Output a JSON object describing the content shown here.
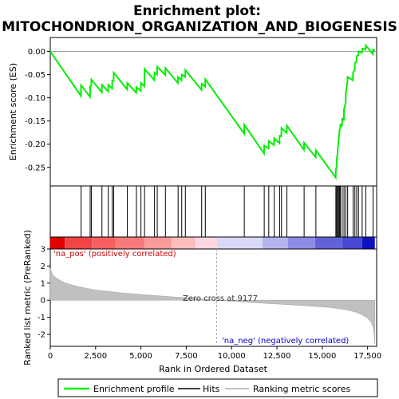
{
  "chart_data": {
    "type": "line",
    "title_line1": "Enrichment plot:",
    "title_line2": "MITOCHONDRION_ORGANIZATION_AND_BIOGENESIS",
    "xlabel": "Rank in Ordered Dataset",
    "ylabel_top": "Enrichment score (ES)",
    "ylabel_bottom": "Ranked list metric (PreRanked)",
    "x_range": [
      0,
      18000
    ],
    "x_ticks": [
      0,
      2500,
      5000,
      7500,
      10000,
      12500,
      15000,
      17500
    ],
    "x_tick_labels": [
      "0",
      "2,500",
      "5,000",
      "7,500",
      "10,000",
      "12,500",
      "15,000",
      "17,500"
    ],
    "es_range": [
      -0.29,
      0.03
    ],
    "es_ticks": [
      0.0,
      -0.05,
      -0.1,
      -0.15,
      -0.2,
      -0.25
    ],
    "es_tick_labels": [
      "0.00",
      "-0.05",
      "-0.10",
      "-0.15",
      "-0.20",
      "-0.25"
    ],
    "metric_range": [
      -2.7,
      3.0
    ],
    "metric_ticks": [
      3,
      2,
      1,
      0,
      -1,
      -2
    ],
    "metric_tick_labels": [
      "3",
      "2",
      "1",
      "0",
      "-1",
      "-2"
    ],
    "zero_cross_label": "Zero cross at 9177",
    "zero_cross_rank": 9177,
    "pos_label": "'na_pos' (positively correlated)",
    "neg_label": "'na_neg' (negatively correlated)",
    "hits": [
      1700,
      2200,
      2270,
      2850,
      3200,
      3420,
      3500,
      4250,
      4750,
      5000,
      5200,
      5750,
      5900,
      6350,
      7050,
      7250,
      7450,
      8350,
      8550,
      10700,
      11800,
      12050,
      12350,
      12650,
      12750,
      13050,
      14000,
      14650,
      15750,
      15800,
      15850,
      15900,
      15950,
      16000,
      16100,
      16200,
      16300,
      16400,
      16700,
      16800,
      16900,
      17000,
      17200,
      17400,
      17800
    ],
    "es_curve": [
      [
        0,
        0.0
      ],
      [
        1690,
        -0.096
      ],
      [
        1700,
        -0.073
      ],
      [
        2190,
        -0.098
      ],
      [
        2200,
        -0.075
      ],
      [
        2260,
        -0.074
      ],
      [
        2270,
        -0.061
      ],
      [
        2840,
        -0.088
      ],
      [
        2850,
        -0.072
      ],
      [
        3190,
        -0.086
      ],
      [
        3200,
        -0.072
      ],
      [
        3410,
        -0.08
      ],
      [
        3420,
        -0.063
      ],
      [
        3490,
        -0.063
      ],
      [
        3500,
        -0.046
      ],
      [
        4240,
        -0.082
      ],
      [
        4250,
        -0.068
      ],
      [
        4740,
        -0.089
      ],
      [
        4750,
        -0.077
      ],
      [
        4990,
        -0.085
      ],
      [
        5000,
        -0.068
      ],
      [
        5190,
        -0.075
      ],
      [
        5200,
        -0.038
      ],
      [
        5740,
        -0.062
      ],
      [
        5750,
        -0.046
      ],
      [
        5890,
        -0.05
      ],
      [
        5900,
        -0.033
      ],
      [
        6340,
        -0.051
      ],
      [
        6350,
        -0.036
      ],
      [
        7040,
        -0.068
      ],
      [
        7050,
        -0.055
      ],
      [
        7240,
        -0.062
      ],
      [
        7250,
        -0.05
      ],
      [
        7440,
        -0.055
      ],
      [
        7450,
        -0.04
      ],
      [
        8340,
        -0.083
      ],
      [
        8350,
        -0.07
      ],
      [
        8540,
        -0.076
      ],
      [
        8550,
        -0.06
      ],
      [
        10690,
        -0.177
      ],
      [
        10700,
        -0.158
      ],
      [
        11790,
        -0.22
      ],
      [
        11800,
        -0.203
      ],
      [
        12040,
        -0.209
      ],
      [
        12050,
        -0.193
      ],
      [
        12340,
        -0.202
      ],
      [
        12350,
        -0.187
      ],
      [
        12640,
        -0.198
      ],
      [
        12650,
        -0.182
      ],
      [
        12740,
        -0.183
      ],
      [
        12750,
        -0.165
      ],
      [
        13040,
        -0.176
      ],
      [
        13050,
        -0.16
      ],
      [
        13990,
        -0.212
      ],
      [
        14000,
        -0.197
      ],
      [
        14640,
        -0.228
      ],
      [
        14650,
        -0.213
      ],
      [
        15740,
        -0.272
      ],
      [
        15750,
        -0.255
      ],
      [
        15790,
        -0.249
      ],
      [
        15800,
        -0.232
      ],
      [
        15840,
        -0.222
      ],
      [
        15850,
        -0.21
      ],
      [
        15890,
        -0.2
      ],
      [
        15900,
        -0.188
      ],
      [
        15940,
        -0.18
      ],
      [
        15950,
        -0.17
      ],
      [
        15990,
        -0.166
      ],
      [
        16000,
        -0.158
      ],
      [
        16090,
        -0.16
      ],
      [
        16100,
        -0.145
      ],
      [
        16190,
        -0.147
      ],
      [
        16200,
        -0.125
      ],
      [
        16290,
        -0.11
      ],
      [
        16300,
        -0.09
      ],
      [
        16390,
        -0.065
      ],
      [
        16400,
        -0.055
      ],
      [
        16690,
        -0.062
      ],
      [
        16700,
        -0.045
      ],
      [
        16790,
        -0.04
      ],
      [
        16800,
        -0.025
      ],
      [
        16890,
        -0.022
      ],
      [
        16900,
        -0.01
      ],
      [
        16990,
        -0.008
      ],
      [
        17000,
        0.0
      ],
      [
        17190,
        -0.003
      ],
      [
        17200,
        0.006
      ],
      [
        17390,
        0.004
      ],
      [
        17400,
        0.013
      ],
      [
        17790,
        -0.006
      ],
      [
        17800,
        0.004
      ],
      [
        17900,
        0.002
      ]
    ],
    "metric_curve": [
      [
        0,
        1.85
      ],
      [
        150,
        1.45
      ],
      [
        400,
        1.25
      ],
      [
        800,
        1.02
      ],
      [
        1500,
        0.8
      ],
      [
        2500,
        0.6
      ],
      [
        4000,
        0.42
      ],
      [
        6000,
        0.25
      ],
      [
        8000,
        0.1
      ],
      [
        9177,
        0.0
      ],
      [
        11000,
        -0.13
      ],
      [
        13000,
        -0.25
      ],
      [
        14500,
        -0.35
      ],
      [
        15500,
        -0.43
      ],
      [
        16300,
        -0.55
      ],
      [
        16800,
        -0.68
      ],
      [
        17200,
        -0.85
      ],
      [
        17500,
        -1.05
      ],
      [
        17700,
        -1.3
      ],
      [
        17800,
        -1.55
      ],
      [
        17860,
        -1.9
      ],
      [
        17900,
        -2.55
      ]
    ],
    "color_bar": [
      [
        0,
        800,
        "#e30000"
      ],
      [
        800,
        2300,
        "#f04545"
      ],
      [
        2300,
        3600,
        "#f65f5f"
      ],
      [
        3600,
        5200,
        "#f77a7a"
      ],
      [
        5200,
        6700,
        "#fa9a9a"
      ],
      [
        6700,
        8000,
        "#fcbcbc"
      ],
      [
        8000,
        9200,
        "#fdd6e3"
      ],
      [
        9200,
        11700,
        "#d8d8f7"
      ],
      [
        11700,
        13100,
        "#b4b4ef"
      ],
      [
        13100,
        14600,
        "#8c8ce5"
      ],
      [
        14600,
        16100,
        "#6262d8"
      ],
      [
        16100,
        17200,
        "#4848d2"
      ],
      [
        17200,
        17900,
        "#1111c4"
      ]
    ],
    "legend": {
      "profile": "Enrichment profile",
      "hits": "Hits",
      "metric": "Ranking metric scores"
    },
    "colors": {
      "profile": "#00ee00",
      "hits": "#000000",
      "metric_fill": "#c0c0c0",
      "zero_line": "#b0b0b0",
      "pos_label": "#cc0000",
      "neg_label": "#0000cc"
    }
  }
}
